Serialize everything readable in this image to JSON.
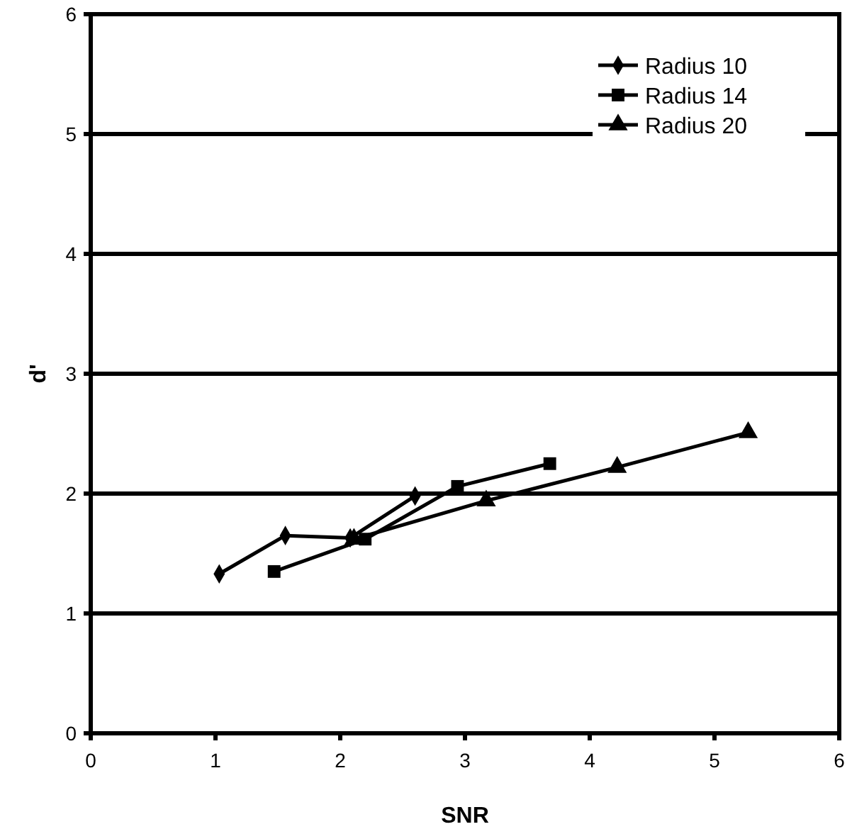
{
  "chart_data": {
    "type": "line",
    "xlabel": "SNR",
    "ylabel": "d'",
    "xlim": [
      0,
      6
    ],
    "ylim": [
      0,
      6
    ],
    "xticks": [
      0,
      1,
      2,
      3,
      4,
      5,
      6
    ],
    "yticks": [
      0,
      1,
      2,
      3,
      4,
      5,
      6
    ],
    "grid": "y",
    "legend": "top right",
    "series": [
      {
        "name": "Radius 10",
        "color": "#000000",
        "marker": "diamond",
        "x": [
          1.03,
          1.56,
          2.08,
          2.6
        ],
        "values": [
          1.33,
          1.65,
          1.63,
          1.98
        ]
      },
      {
        "name": "Radius 14",
        "color": "#000000",
        "marker": "square",
        "x": [
          1.47,
          2.2,
          2.94,
          3.68
        ],
        "values": [
          1.35,
          1.62,
          2.06,
          2.25
        ]
      },
      {
        "name": "Radius 20",
        "color": "#000000",
        "marker": "triangle",
        "x": [
          2.11,
          3.17,
          4.22,
          5.27
        ],
        "values": [
          1.62,
          1.94,
          2.22,
          2.51
        ]
      }
    ]
  }
}
